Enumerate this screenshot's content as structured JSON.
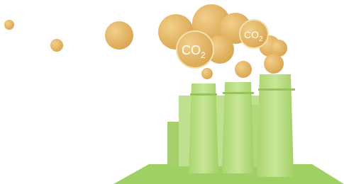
{
  "labels": [
    {
      "text": "CO",
      "subscript": "2"
    },
    {
      "text": "CO",
      "subscript": "2"
    }
  ]
}
